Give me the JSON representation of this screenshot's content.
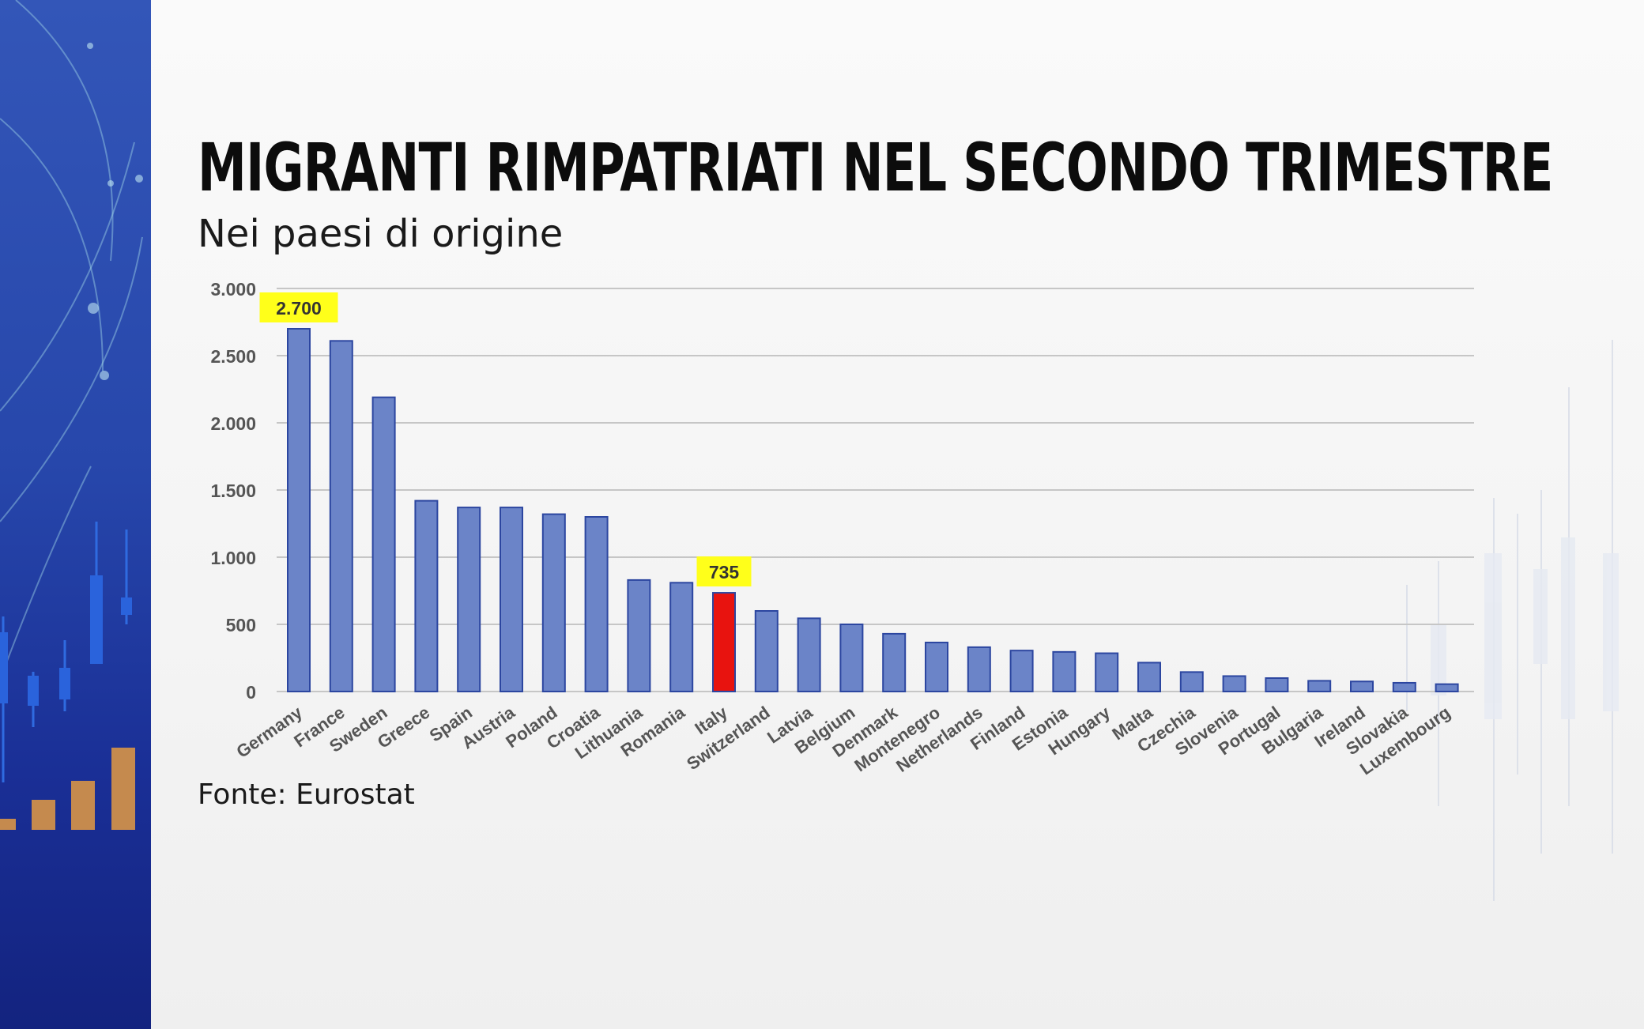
{
  "title": "MIGRANTI RIMPATRIATI NEL SECONDO TRIMESTRE",
  "subtitle": "Nei paesi di origine",
  "source": "Fonte: Eurostat",
  "colors": {
    "bar": "#6b84c8",
    "bar_edge": "#2c46a0",
    "highlight_bar": "#e8130f",
    "highlight_edge": "#2c46a0",
    "callout": "#ffff1a",
    "grid": "#c6c6c6",
    "tick_text": "#555555"
  },
  "chart_data": {
    "type": "bar",
    "title": "",
    "xlabel": "",
    "ylabel": "",
    "ylim": [
      0,
      3000
    ],
    "yticks": [
      {
        "value": 0,
        "label": "0"
      },
      {
        "value": 500,
        "label": "500"
      },
      {
        "value": 1000,
        "label": "1.000"
      },
      {
        "value": 1500,
        "label": "1.500"
      },
      {
        "value": 2000,
        "label": "2.000"
      },
      {
        "value": 2500,
        "label": "2.500"
      },
      {
        "value": 3000,
        "label": "3.000"
      }
    ],
    "grid": true,
    "categories": [
      "Germany",
      "France",
      "Sweden",
      "Greece",
      "Spain",
      "Austria",
      "Poland",
      "Croatia",
      "Lithuania",
      "Romania",
      "Italy",
      "Switzerland",
      "Latvia",
      "Belgium",
      "Denmark",
      "Montenegro",
      "Netherlands",
      "Finland",
      "Estonia",
      "Hungary",
      "Malta",
      "Czechia",
      "Slovenia",
      "Portugal",
      "Bulgaria",
      "Ireland",
      "Slovakia",
      "Luxembourg"
    ],
    "values": [
      2700,
      2610,
      2190,
      1420,
      1370,
      1370,
      1320,
      1300,
      830,
      810,
      735,
      600,
      545,
      500,
      430,
      365,
      330,
      305,
      295,
      285,
      215,
      145,
      115,
      100,
      80,
      75,
      65,
      55
    ],
    "highlight": "Italy",
    "data_labels": [
      {
        "category": "Germany",
        "label": "2.700"
      },
      {
        "category": "Italy",
        "label": "735"
      }
    ]
  }
}
